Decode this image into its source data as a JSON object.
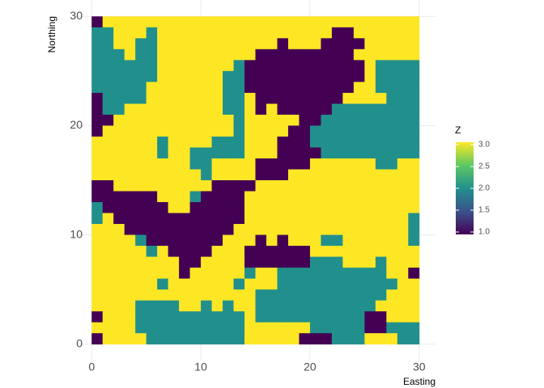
{
  "chart_data": {
    "type": "heatmap",
    "x_label": "Easting",
    "y_label": "Northing",
    "x": [
      0.5,
      1.5,
      2.5,
      3.5,
      4.5,
      5.5,
      6.5,
      7.5,
      8.5,
      9.5,
      10.5,
      11.5,
      12.5,
      13.5,
      14.5,
      15.5,
      16.5,
      17.5,
      18.5,
      19.5,
      20.5,
      21.5,
      22.5,
      23.5,
      24.5,
      25.5,
      26.5,
      27.5,
      28.5,
      29.5
    ],
    "y": [
      29.5,
      28.5,
      27.5,
      26.5,
      25.5,
      24.5,
      23.5,
      22.5,
      21.5,
      20.5,
      19.5,
      18.5,
      17.5,
      16.5,
      15.5,
      14.5,
      13.5,
      12.5,
      11.5,
      10.5,
      9.5,
      8.5,
      7.5,
      6.5,
      5.5,
      4.5,
      3.5,
      2.5,
      1.5,
      0.5
    ],
    "z": [
      [
        1,
        3,
        3,
        3,
        3,
        3,
        3,
        3,
        3,
        3,
        3,
        3,
        3,
        3,
        3,
        3,
        3,
        3,
        3,
        3,
        3,
        3,
        3,
        3,
        3,
        3,
        3,
        3,
        3,
        3
      ],
      [
        2,
        2,
        3,
        3,
        3,
        2,
        3,
        3,
        3,
        3,
        3,
        3,
        3,
        3,
        3,
        3,
        3,
        3,
        3,
        3,
        3,
        3,
        1,
        1,
        3,
        3,
        3,
        3,
        3,
        3
      ],
      [
        2,
        2,
        3,
        3,
        2,
        2,
        3,
        3,
        3,
        3,
        3,
        3,
        3,
        3,
        3,
        3,
        3,
        1,
        3,
        3,
        3,
        1,
        1,
        1,
        1,
        3,
        3,
        3,
        3,
        3
      ],
      [
        2,
        2,
        2,
        3,
        2,
        2,
        3,
        3,
        3,
        3,
        3,
        3,
        3,
        3,
        3,
        1,
        1,
        1,
        1,
        1,
        1,
        1,
        1,
        1,
        3,
        3,
        3,
        3,
        3,
        3
      ],
      [
        2,
        2,
        2,
        2,
        2,
        2,
        3,
        3,
        3,
        3,
        3,
        3,
        3,
        2,
        1,
        1,
        1,
        1,
        1,
        1,
        1,
        1,
        1,
        1,
        1,
        3,
        2,
        2,
        2,
        2
      ],
      [
        2,
        2,
        2,
        2,
        2,
        2,
        3,
        3,
        3,
        3,
        3,
        3,
        2,
        2,
        1,
        1,
        1,
        1,
        1,
        1,
        1,
        1,
        1,
        1,
        1,
        3,
        2,
        2,
        2,
        2
      ],
      [
        2,
        2,
        2,
        2,
        2,
        3,
        3,
        3,
        3,
        3,
        3,
        3,
        2,
        2,
        1,
        1,
        1,
        1,
        1,
        1,
        1,
        1,
        1,
        1,
        3,
        3,
        2,
        2,
        2,
        2
      ],
      [
        1,
        2,
        2,
        2,
        2,
        3,
        3,
        3,
        3,
        3,
        3,
        3,
        2,
        2,
        3,
        1,
        1,
        1,
        1,
        1,
        1,
        1,
        1,
        3,
        3,
        3,
        3,
        2,
        2,
        2
      ],
      [
        1,
        2,
        2,
        3,
        3,
        3,
        3,
        3,
        3,
        3,
        3,
        3,
        2,
        2,
        3,
        1,
        3,
        1,
        1,
        1,
        1,
        1,
        2,
        2,
        2,
        2,
        2,
        2,
        2,
        2
      ],
      [
        1,
        1,
        3,
        3,
        3,
        3,
        3,
        3,
        3,
        3,
        3,
        3,
        3,
        2,
        3,
        3,
        3,
        3,
        3,
        1,
        1,
        2,
        2,
        2,
        2,
        2,
        2,
        2,
        2,
        2
      ],
      [
        1,
        3,
        3,
        3,
        3,
        3,
        3,
        3,
        3,
        3,
        3,
        3,
        3,
        2,
        3,
        3,
        3,
        3,
        1,
        1,
        2,
        2,
        2,
        2,
        2,
        2,
        2,
        2,
        2,
        2
      ],
      [
        3,
        3,
        3,
        3,
        3,
        3,
        2,
        3,
        3,
        3,
        3,
        2,
        2,
        2,
        3,
        3,
        3,
        1,
        1,
        1,
        2,
        2,
        2,
        2,
        2,
        2,
        2,
        2,
        2,
        2
      ],
      [
        3,
        3,
        3,
        3,
        3,
        3,
        2,
        3,
        3,
        2,
        2,
        2,
        2,
        2,
        3,
        3,
        3,
        1,
        1,
        1,
        1,
        2,
        2,
        2,
        2,
        2,
        2,
        2,
        2,
        2
      ],
      [
        3,
        3,
        3,
        3,
        3,
        3,
        3,
        3,
        3,
        2,
        2,
        3,
        3,
        3,
        3,
        1,
        1,
        1,
        1,
        1,
        3,
        3,
        3,
        3,
        3,
        3,
        2,
        2,
        3,
        3
      ],
      [
        3,
        3,
        3,
        3,
        3,
        3,
        3,
        3,
        3,
        3,
        2,
        3,
        3,
        3,
        3,
        1,
        1,
        1,
        3,
        3,
        3,
        3,
        3,
        3,
        3,
        3,
        3,
        3,
        3,
        3
      ],
      [
        1,
        1,
        3,
        3,
        3,
        3,
        3,
        3,
        3,
        3,
        3,
        1,
        1,
        1,
        1,
        3,
        3,
        3,
        3,
        3,
        3,
        3,
        3,
        3,
        3,
        3,
        3,
        3,
        3,
        3
      ],
      [
        1,
        1,
        1,
        1,
        1,
        1,
        3,
        3,
        3,
        2,
        1,
        1,
        1,
        1,
        3,
        3,
        3,
        3,
        3,
        3,
        3,
        3,
        3,
        3,
        3,
        3,
        3,
        3,
        3,
        3
      ],
      [
        2,
        1,
        1,
        1,
        1,
        1,
        1,
        3,
        3,
        1,
        1,
        1,
        1,
        1,
        3,
        3,
        3,
        3,
        3,
        3,
        3,
        3,
        3,
        3,
        3,
        3,
        3,
        3,
        3,
        3
      ],
      [
        2,
        3,
        1,
        1,
        1,
        1,
        1,
        1,
        1,
        1,
        1,
        1,
        1,
        1,
        3,
        3,
        3,
        3,
        3,
        3,
        3,
        3,
        3,
        3,
        3,
        3,
        3,
        3,
        3,
        2
      ],
      [
        3,
        3,
        3,
        1,
        1,
        1,
        1,
        1,
        1,
        1,
        1,
        1,
        1,
        3,
        3,
        3,
        3,
        3,
        3,
        3,
        3,
        3,
        3,
        3,
        3,
        3,
        3,
        3,
        3,
        2
      ],
      [
        3,
        3,
        3,
        3,
        2,
        1,
        1,
        1,
        1,
        1,
        1,
        1,
        3,
        3,
        3,
        1,
        3,
        1,
        3,
        3,
        3,
        2,
        2,
        3,
        3,
        3,
        3,
        3,
        3,
        2
      ],
      [
        3,
        3,
        3,
        3,
        3,
        2,
        3,
        1,
        1,
        1,
        1,
        3,
        3,
        3,
        1,
        1,
        1,
        1,
        1,
        1,
        3,
        3,
        3,
        3,
        3,
        3,
        3,
        3,
        3,
        3
      ],
      [
        3,
        3,
        3,
        3,
        3,
        3,
        3,
        3,
        1,
        1,
        3,
        3,
        3,
        3,
        1,
        1,
        1,
        1,
        1,
        1,
        2,
        2,
        2,
        3,
        3,
        3,
        2,
        3,
        3,
        3
      ],
      [
        3,
        3,
        3,
        3,
        3,
        3,
        3,
        3,
        1,
        3,
        3,
        3,
        3,
        3,
        2,
        3,
        3,
        2,
        2,
        2,
        2,
        2,
        2,
        2,
        2,
        2,
        2,
        3,
        3,
        1
      ],
      [
        3,
        3,
        3,
        3,
        3,
        3,
        2,
        3,
        3,
        3,
        3,
        3,
        3,
        2,
        3,
        3,
        3,
        2,
        2,
        2,
        2,
        2,
        2,
        2,
        2,
        2,
        2,
        2,
        3,
        3
      ],
      [
        3,
        3,
        3,
        3,
        3,
        3,
        3,
        3,
        3,
        3,
        3,
        3,
        3,
        3,
        3,
        2,
        2,
        2,
        2,
        2,
        2,
        2,
        2,
        2,
        2,
        2,
        2,
        3,
        3,
        3
      ],
      [
        3,
        3,
        3,
        3,
        2,
        2,
        2,
        2,
        3,
        3,
        2,
        3,
        2,
        3,
        3,
        2,
        2,
        2,
        2,
        2,
        2,
        2,
        2,
        2,
        2,
        2,
        3,
        3,
        3,
        3
      ],
      [
        1,
        3,
        3,
        3,
        2,
        2,
        2,
        2,
        2,
        2,
        2,
        2,
        2,
        2,
        3,
        2,
        2,
        2,
        2,
        2,
        2,
        2,
        2,
        2,
        2,
        1,
        1,
        3,
        3,
        3
      ],
      [
        3,
        3,
        3,
        3,
        2,
        2,
        2,
        2,
        2,
        2,
        2,
        2,
        2,
        2,
        3,
        3,
        3,
        3,
        3,
        3,
        2,
        2,
        2,
        2,
        2,
        1,
        1,
        2,
        2,
        2
      ],
      [
        1,
        3,
        3,
        3,
        3,
        2,
        2,
        2,
        2,
        2,
        2,
        2,
        2,
        2,
        3,
        3,
        3,
        3,
        3,
        1,
        1,
        1,
        2,
        2,
        2,
        3,
        3,
        3,
        2,
        2
      ]
    ],
    "xlim": [
      -1.5,
      31.5
    ],
    "ylim": [
      -1.5,
      31.5
    ],
    "xticks": [
      0,
      10,
      20,
      30
    ],
    "yticks": [
      0,
      10,
      20,
      30
    ],
    "grid": true,
    "legend_title": "Z",
    "zlim": [
      1,
      3
    ],
    "zticks": [
      {
        "value": 1,
        "label": "1.0"
      },
      {
        "value": 1.5,
        "label": "1.5"
      },
      {
        "value": 2,
        "label": "2.0"
      },
      {
        "value": 2.5,
        "label": "2.5"
      },
      {
        "value": 3,
        "label": "3.0"
      }
    ],
    "colors": [
      "#440154",
      "#3B528B",
      "#21908C",
      "#5DC863",
      "#FDE725"
    ]
  }
}
